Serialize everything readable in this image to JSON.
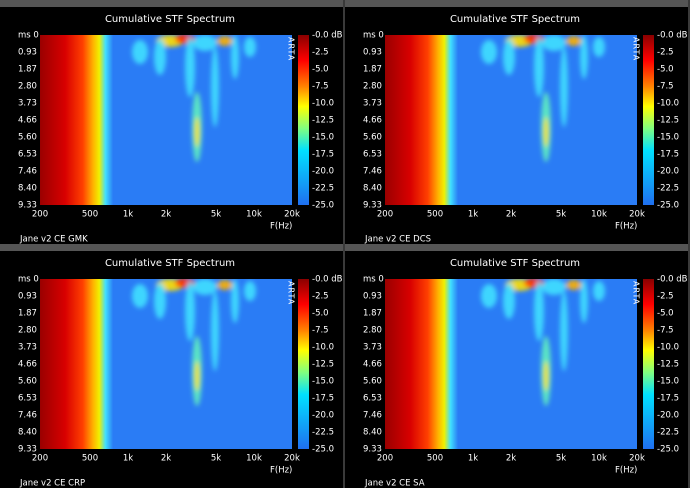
{
  "panels": [
    {
      "title": "Cumulative STF Spectrum",
      "caption": "Jane v2 CE GMK",
      "brand": "ARTA",
      "x_axis_label": "F(Hz)",
      "y_labels": [
        "ms 0",
        "0.93",
        "1.87",
        "2.80",
        "3.73",
        "4.66",
        "5.60",
        "6.53",
        "7.46",
        "8.40",
        "9.33"
      ],
      "x_labels": [
        "200",
        "500",
        "1k",
        "2k",
        "5k",
        "10k",
        "20k"
      ],
      "colorbar_labels": [
        "-0.0 dB",
        "-2.5",
        "-5.0",
        "-7.5",
        "-10.0",
        "-12.5",
        "-15.0",
        "-17.5",
        "-20.0",
        "-22.5",
        "-25.0"
      ]
    },
    {
      "title": "Cumulative STF Spectrum",
      "caption": "Jane v2 CE DCS",
      "brand": "ARTA",
      "x_axis_label": "F(Hz)",
      "y_labels": [
        "ms 0",
        "0.93",
        "1.87",
        "2.80",
        "3.73",
        "4.66",
        "5.60",
        "6.53",
        "7.46",
        "8.40",
        "9.33"
      ],
      "x_labels": [
        "200",
        "500",
        "1k",
        "2k",
        "5k",
        "10k",
        "20k"
      ],
      "colorbar_labels": [
        "-0.0 dB",
        "-2.5",
        "-5.0",
        "-7.5",
        "-10.0",
        "-12.5",
        "-15.0",
        "-17.5",
        "-20.0",
        "-22.5",
        "-25.0"
      ]
    },
    {
      "title": "Cumulative STF Spectrum",
      "caption": "Jane v2 CE CRP",
      "brand": "ARTA",
      "x_axis_label": "F(Hz)",
      "y_labels": [
        "ms 0",
        "0.93",
        "1.87",
        "2.80",
        "3.73",
        "4.66",
        "5.60",
        "6.53",
        "7.46",
        "8.40",
        "9.33"
      ],
      "x_labels": [
        "200",
        "500",
        "1k",
        "2k",
        "5k",
        "10k",
        "20k"
      ],
      "colorbar_labels": [
        "-0.0 dB",
        "-2.5",
        "-5.0",
        "-7.5",
        "-10.0",
        "-12.5",
        "-15.0",
        "-17.5",
        "-20.0",
        "-22.5",
        "-25.0"
      ]
    },
    {
      "title": "Cumulative STF Spectrum",
      "caption": "Jane v2 CE SA",
      "brand": "ARTA",
      "x_axis_label": "F(Hz)",
      "y_labels": [
        "ms 0",
        "0.93",
        "1.87",
        "2.80",
        "3.73",
        "4.66",
        "5.60",
        "6.53",
        "7.46",
        "8.40",
        "9.33"
      ],
      "x_labels": [
        "200",
        "500",
        "1k",
        "2k",
        "5k",
        "10k",
        "20k"
      ],
      "colorbar_labels": [
        "-0.0 dB",
        "-2.5",
        "-5.0",
        "-7.5",
        "-10.0",
        "-12.5",
        "-15.0",
        "-17.5",
        "-20.0",
        "-22.5",
        "-25.0"
      ]
    }
  ]
}
